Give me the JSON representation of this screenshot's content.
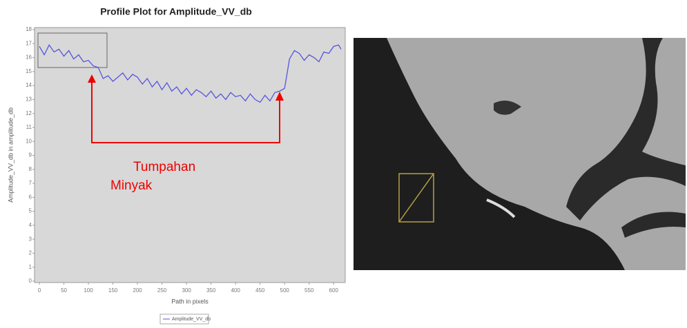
{
  "chart_data": {
    "type": "line",
    "title": "Profile Plot for Amplitude_VV_db",
    "x_label": "Path in pixels",
    "y_label": "Amplitude_VV_db in amplitude_db",
    "annotations": [
      "Tumpahan",
      "Minyak"
    ],
    "x": [
      0,
      10,
      20,
      30,
      40,
      50,
      60,
      70,
      80,
      90,
      100,
      110,
      120,
      130,
      140,
      150,
      160,
      170,
      180,
      190,
      200,
      210,
      220,
      230,
      240,
      250,
      260,
      270,
      280,
      290,
      300,
      310,
      320,
      330,
      340,
      350,
      360,
      370,
      380,
      390,
      400,
      410,
      420,
      430,
      440,
      450,
      460,
      470,
      480,
      490,
      500,
      510,
      520,
      530,
      540,
      550,
      560,
      570,
      580,
      590,
      600,
      610,
      615
    ],
    "series": [
      {
        "name": "Amplitude_VV_db",
        "color": "#5555dd",
        "values": [
          16.8,
          16.2,
          16.9,
          16.4,
          16.6,
          16.1,
          16.5,
          15.9,
          16.2,
          15.7,
          15.8,
          15.4,
          15.3,
          14.5,
          14.7,
          14.3,
          14.6,
          14.9,
          14.4,
          14.8,
          14.6,
          14.1,
          14.5,
          13.9,
          14.3,
          13.7,
          14.2,
          13.6,
          13.9,
          13.4,
          13.8,
          13.3,
          13.7,
          13.5,
          13.2,
          13.6,
          13.1,
          13.4,
          13.0,
          13.5,
          13.2,
          13.3,
          12.9,
          13.4,
          13.0,
          12.8,
          13.3,
          12.9,
          13.5,
          13.6,
          13.8,
          15.9,
          16.5,
          16.3,
          15.8,
          16.2,
          16.0,
          15.7,
          16.4,
          16.3,
          16.8,
          16.9,
          16.6
        ]
      }
    ],
    "xlim": [
      0,
      625
    ],
    "ylim": [
      0,
      18
    ],
    "xticks": [
      0,
      50,
      100,
      150,
      200,
      250,
      300,
      350,
      400,
      450,
      500,
      550,
      600
    ],
    "yticks": [
      0,
      1,
      2,
      3,
      4,
      5,
      6,
      7,
      8,
      9,
      10,
      11,
      12,
      13,
      14,
      15,
      16,
      17,
      18
    ],
    "grid": false
  }
}
